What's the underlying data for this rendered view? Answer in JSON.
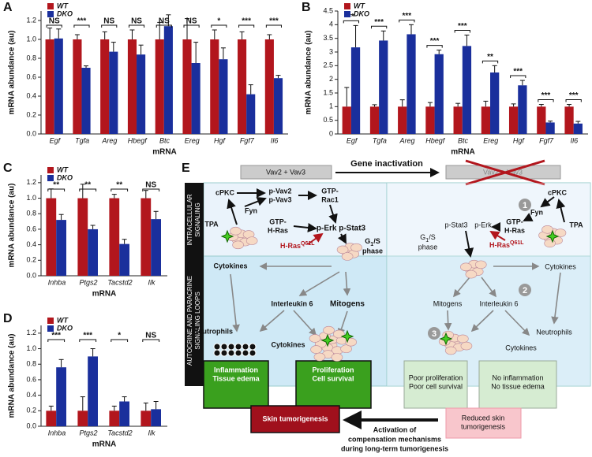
{
  "chart_data": [
    {
      "type": "bar",
      "panel": "A",
      "y_label": "mRNA  abundance (au)",
      "x_label": "mRNA",
      "categories": [
        "Egf",
        "Tgfa",
        "Areg",
        "Hbegf",
        "Btc",
        "Ereg",
        "Hgf",
        "Fgf7",
        "Il6"
      ],
      "series": [
        {
          "name": "WT",
          "color": "#b2161d",
          "values": [
            1,
            1,
            1,
            1,
            1,
            1,
            1,
            1,
            1
          ],
          "errors": [
            0.12,
            0.05,
            0.08,
            0.1,
            0.18,
            0.22,
            0.1,
            0.08,
            0.05
          ]
        },
        {
          "name": "DKO",
          "color": "#1a2f9c",
          "values": [
            1.01,
            0.7,
            0.87,
            0.84,
            1.14,
            0.75,
            0.79,
            0.42,
            0.59
          ],
          "errors": [
            0.1,
            0.02,
            0.1,
            0.1,
            0.12,
            0.22,
            0.12,
            0.1,
            0.03
          ]
        }
      ],
      "significance": [
        "NS",
        "***",
        "NS",
        "NS",
        "NS",
        "NS",
        "*",
        "***",
        "***"
      ],
      "ylim": [
        0,
        1.3
      ],
      "yticks": [
        {
          "value": 0,
          "label": "0.0"
        },
        0.2,
        0.4,
        0.6,
        0.8,
        {
          "value": 1,
          "label": "1.0"
        },
        1.2
      ],
      "legend": "upper left"
    },
    {
      "type": "bar",
      "panel": "B",
      "y_label": "mRNA  abundance (au)",
      "x_label": "mRNA",
      "categories": [
        "Egf",
        "Tgfa",
        "Areg",
        "Hbegf",
        "Btc",
        "Ereg",
        "Hgf",
        "Fgf7",
        "Il6"
      ],
      "series": [
        {
          "name": "WT",
          "color": "#b2161d",
          "values": [
            1,
            1,
            1,
            1,
            1,
            1,
            1,
            1,
            1
          ],
          "errors": [
            0.7,
            0.07,
            0.25,
            0.15,
            0.12,
            0.2,
            0.1,
            0.08,
            0.08
          ]
        },
        {
          "name": "DKO",
          "color": "#1a2f9c",
          "values": [
            3.17,
            3.42,
            3.65,
            2.92,
            3.22,
            2.25,
            1.78,
            0.42,
            0.38
          ],
          "errors": [
            0.8,
            0.35,
            0.35,
            0.15,
            0.4,
            0.25,
            0.18,
            0.05,
            0.08
          ]
        }
      ],
      "significance": [
        "**",
        "***",
        "***",
        "***",
        "***",
        "**",
        "***",
        "***",
        "***"
      ],
      "ylim": [
        0,
        4.5
      ],
      "yticks": [
        0,
        0.5,
        1,
        1.5,
        2,
        2.5,
        3,
        3.5,
        4,
        4.5
      ],
      "legend": "upper left"
    },
    {
      "type": "bar",
      "panel": "C",
      "y_label": "mRNA  abundance (au)",
      "x_label": "mRNA",
      "categories": [
        "Inhba",
        "Ptgs2",
        "Tacstd2",
        "Ilk"
      ],
      "series": [
        {
          "name": "WT",
          "color": "#b2161d",
          "values": [
            1,
            1,
            1,
            1
          ],
          "errors": [
            0.12,
            0.18,
            0.05,
            0.1
          ]
        },
        {
          "name": "DKO",
          "color": "#1a2f9c",
          "values": [
            0.72,
            0.6,
            0.41,
            0.73
          ],
          "errors": [
            0.07,
            0.05,
            0.06,
            0.1
          ]
        }
      ],
      "significance": [
        "**",
        "**",
        "**",
        "NS"
      ],
      "ylim": [
        0,
        1.3
      ],
      "yticks": [
        {
          "value": 0,
          "label": "0.0"
        },
        0.2,
        0.4,
        0.6,
        0.8,
        {
          "value": 1,
          "label": "1.0"
        },
        1.2
      ],
      "legend": "upper left"
    },
    {
      "type": "bar",
      "panel": "D",
      "y_label": "mRNA  abundance (au)",
      "x_label": "mRNA",
      "categories": [
        "Inhba",
        "Ptgs2",
        "Tacstd2",
        "Ilk"
      ],
      "series": [
        {
          "name": "WT",
          "color": "#b2161d",
          "values": [
            0.2,
            0.2,
            0.2,
            0.2
          ],
          "errors": [
            0.06,
            0.18,
            0.06,
            0.1
          ]
        },
        {
          "name": "DKO",
          "color": "#1a2f9c",
          "values": [
            0.76,
            0.9,
            0.32,
            0.22
          ],
          "errors": [
            0.1,
            0.1,
            0.06,
            0.1
          ]
        }
      ],
      "significance": [
        "***",
        "***",
        "*",
        "NS"
      ],
      "ylim": [
        0,
        1.3
      ],
      "yticks": [
        {
          "value": 0,
          "label": "0.0"
        },
        0.2,
        0.4,
        0.6,
        0.8,
        {
          "value": 1,
          "label": "1.0"
        },
        1.2
      ],
      "legend": "upper left"
    }
  ],
  "diagram": {
    "panel": "E",
    "gene_inactivation": "Gene inactivation",
    "vav_left": "Vav2 + Vav3",
    "vav_right": "Vav2 + Vav3",
    "band_intracellular": [
      "INTRACELLULAR",
      "SIGNALING"
    ],
    "band_loops": [
      "AUTOCRINE AND PARACRINE",
      "SIGNALING LOOPS"
    ],
    "left": {
      "cpkc": "cPKC",
      "pvav": [
        "p-Vav2",
        "p-Vav3"
      ],
      "rac": [
        "GTP-",
        "Rac1"
      ],
      "fyn": "Fyn",
      "tpa": "TPA",
      "hras": [
        "GTP-",
        "H-Ras"
      ],
      "perk": "p-Erk p-Stat3",
      "mutant": {
        "base": "H-Ras",
        "sup": "Q61L"
      },
      "phase": {
        "base": "G",
        "sub": "1",
        "rest": "/S",
        "line2": "phase"
      },
      "cytokines": "Cytokines",
      "il6": "Interleukin 6",
      "mitogens": "Mitogens",
      "neutrophils": "Neutrophils",
      "cytokines2": "Cytokines",
      "box_inflammation": [
        "Inflammation",
        "Tissue edema"
      ],
      "box_proliferation": [
        "Proliferation",
        "Cell survival"
      ],
      "tumorigenesis": "Skin tumorigenesis"
    },
    "right": {
      "cpkc": "cPKC",
      "fyn": "Fyn",
      "hras": [
        "GTP-",
        "H-Ras"
      ],
      "tpa": "TPA",
      "pstat": "p-Stat3",
      "perk": "p-Erk",
      "mutant": {
        "base": "H-Ras",
        "sup": "Q61L"
      },
      "phase": {
        "base": "G",
        "sub": "1",
        "rest": "/S",
        "line2": "phase"
      },
      "cytokines": "Cytokines",
      "mitogens": "Mitogens",
      "il6": "Interleukin 6",
      "neutrophils": "Neutrophils",
      "cytokines2": "Cytokines",
      "box_proliferation": [
        "Poor proliferation",
        "Poor cell survival"
      ],
      "box_inflammation": [
        "No inflammation",
        "No tissue edema"
      ],
      "tumorigenesis": [
        "Reduced skin",
        "tumorigenesis"
      ]
    },
    "steps": [
      "1",
      "2",
      "3"
    ],
    "compensation": [
      "Activation of",
      "compensation mechanisms",
      "during long-term tumorigenesis"
    ]
  }
}
